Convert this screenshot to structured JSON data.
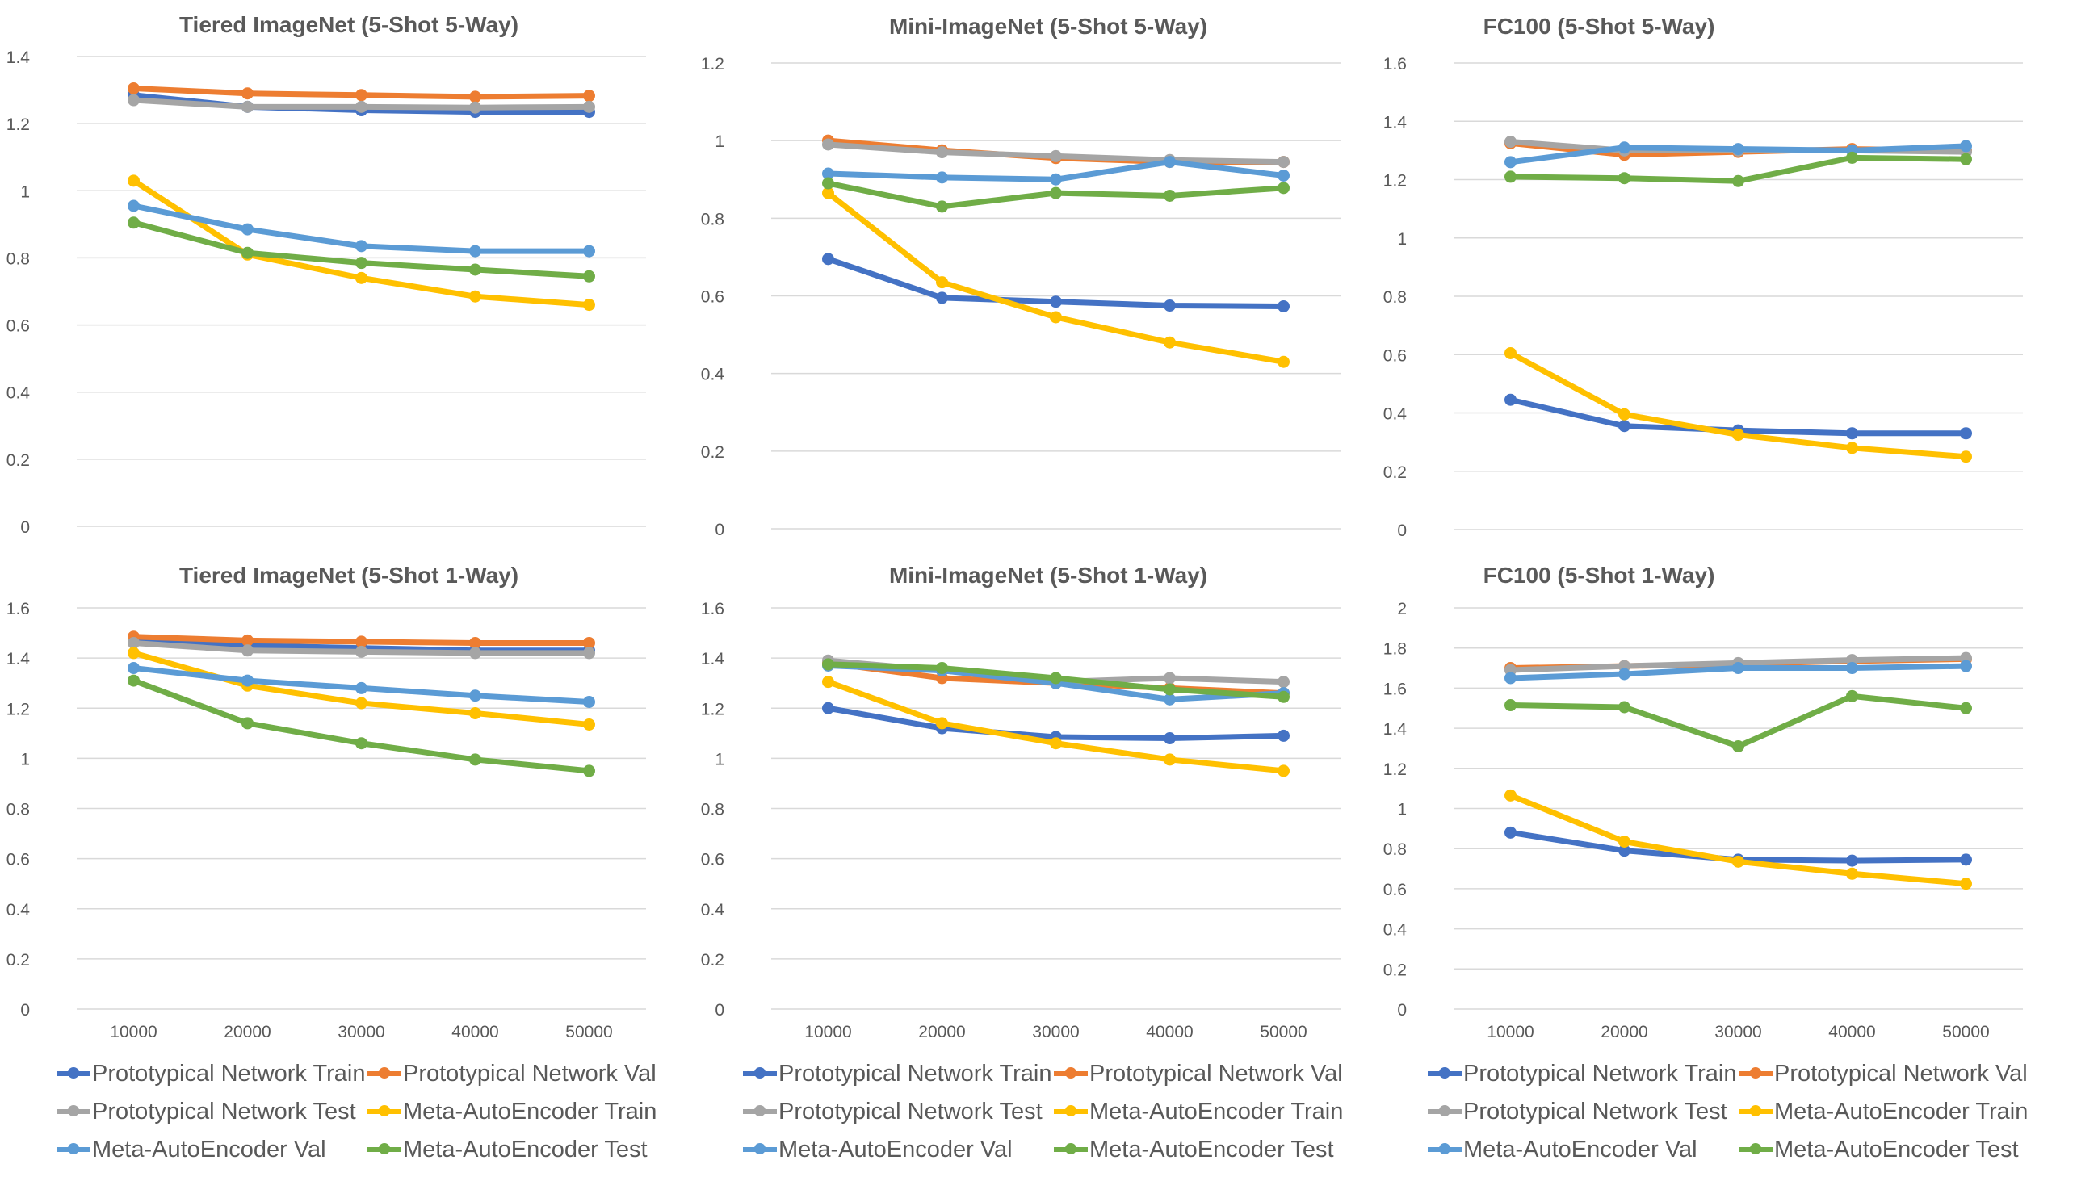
{
  "series_names": [
    "Prototypical Network Train",
    "Prototypical Network Val",
    "Prototypical Network Test",
    "Meta-AutoEncoder Train",
    "Meta-AutoEncoder Val",
    "Meta-AutoEncoder Test"
  ],
  "colors": {
    "Prototypical Network Train": "#4472C4",
    "Prototypical Network Val": "#ED7D31",
    "Prototypical Network Test": "#A5A5A5",
    "Meta-AutoEncoder Train": "#FFC000",
    "Meta-AutoEncoder Val": "#5B9BD5",
    "Meta-AutoEncoder Test": "#70AD47"
  },
  "chart_data": [
    {
      "type": "line",
      "title": "Tiered ImageNet (5-Shot 5-Way)",
      "x": [
        10000,
        20000,
        30000,
        40000,
        50000
      ],
      "xlabels": [
        "",
        "",
        "",
        "",
        ""
      ],
      "ylim": [
        0,
        1.4
      ],
      "yticks": [
        "0",
        "0.2",
        "0.4",
        "0.6",
        "0.8",
        "1",
        "1.2",
        "1.4"
      ],
      "series": [
        {
          "name": "Prototypical Network Train",
          "values": [
            1.285,
            1.25,
            1.24,
            1.235,
            1.235
          ]
        },
        {
          "name": "Prototypical Network Val",
          "values": [
            1.305,
            1.29,
            1.285,
            1.28,
            1.283
          ]
        },
        {
          "name": "Prototypical Network Test",
          "values": [
            1.27,
            1.25,
            1.25,
            1.248,
            1.25
          ]
        },
        {
          "name": "Meta-AutoEncoder Train",
          "values": [
            1.03,
            0.81,
            0.74,
            0.685,
            0.66
          ]
        },
        {
          "name": "Meta-AutoEncoder Val",
          "values": [
            0.955,
            0.885,
            0.835,
            0.82,
            0.82
          ]
        },
        {
          "name": "Meta-AutoEncoder Test",
          "values": [
            0.905,
            0.815,
            0.785,
            0.765,
            0.745
          ]
        }
      ]
    },
    {
      "type": "line",
      "title": "Mini-ImageNet (5-Shot 5-Way)",
      "x": [
        10000,
        20000,
        30000,
        40000,
        50000
      ],
      "xlabels": [
        "",
        "",
        "",
        "",
        ""
      ],
      "ylim": [
        0,
        1.2
      ],
      "yticks": [
        "0",
        "0.2",
        "0.4",
        "0.6",
        "0.8",
        "1",
        "1.2"
      ],
      "series": [
        {
          "name": "Prototypical Network Train",
          "values": [
            0.695,
            0.595,
            0.585,
            0.575,
            0.573
          ]
        },
        {
          "name": "Prototypical Network Val",
          "values": [
            1.0,
            0.975,
            0.955,
            0.945,
            0.945
          ]
        },
        {
          "name": "Prototypical Network Test",
          "values": [
            0.99,
            0.97,
            0.96,
            0.95,
            0.945
          ]
        },
        {
          "name": "Meta-AutoEncoder Train",
          "values": [
            0.865,
            0.635,
            0.545,
            0.48,
            0.43
          ]
        },
        {
          "name": "Meta-AutoEncoder Val",
          "values": [
            0.915,
            0.905,
            0.9,
            0.945,
            0.91
          ]
        },
        {
          "name": "Meta-AutoEncoder Test",
          "values": [
            0.89,
            0.83,
            0.865,
            0.858,
            0.878
          ]
        }
      ]
    },
    {
      "type": "line",
      "title": "FC100 (5-Shot 5-Way)",
      "x": [
        10000,
        20000,
        30000,
        40000,
        50000
      ],
      "xlabels": [
        "",
        "",
        "",
        "",
        ""
      ],
      "ylim": [
        0,
        1.6
      ],
      "yticks": [
        "0",
        "0.2",
        "0.4",
        "0.6",
        "0.8",
        "1",
        "1.2",
        "1.4",
        "1.6"
      ],
      "series": [
        {
          "name": "Prototypical Network Train",
          "values": [
            0.445,
            0.355,
            0.34,
            0.33,
            0.33
          ]
        },
        {
          "name": "Prototypical Network Val",
          "values": [
            1.325,
            1.285,
            1.295,
            1.305,
            1.3
          ]
        },
        {
          "name": "Prototypical Network Test",
          "values": [
            1.33,
            1.3,
            1.3,
            1.3,
            1.295
          ]
        },
        {
          "name": "Meta-AutoEncoder Train",
          "values": [
            0.605,
            0.395,
            0.325,
            0.28,
            0.25
          ]
        },
        {
          "name": "Meta-AutoEncoder Val",
          "values": [
            1.26,
            1.31,
            1.305,
            1.3,
            1.315
          ]
        },
        {
          "name": "Meta-AutoEncoder Test",
          "values": [
            1.21,
            1.205,
            1.195,
            1.275,
            1.27
          ]
        }
      ]
    },
    {
      "type": "line",
      "title": "Tiered ImageNet (5-Shot 1-Way)",
      "x": [
        10000,
        20000,
        30000,
        40000,
        50000
      ],
      "xlabels": [
        "10000",
        "20000",
        "30000",
        "40000",
        "50000"
      ],
      "ylim": [
        0,
        1.6
      ],
      "yticks": [
        "0",
        "0.2",
        "0.4",
        "0.6",
        "0.8",
        "1",
        "1.2",
        "1.4",
        "1.6"
      ],
      "series": [
        {
          "name": "Prototypical Network Train",
          "values": [
            1.47,
            1.45,
            1.44,
            1.43,
            1.43
          ]
        },
        {
          "name": "Prototypical Network Val",
          "values": [
            1.485,
            1.47,
            1.465,
            1.46,
            1.46
          ]
        },
        {
          "name": "Prototypical Network Test",
          "values": [
            1.46,
            1.43,
            1.425,
            1.42,
            1.42
          ]
        },
        {
          "name": "Meta-AutoEncoder Train",
          "values": [
            1.42,
            1.29,
            1.22,
            1.18,
            1.135
          ]
        },
        {
          "name": "Meta-AutoEncoder Val",
          "values": [
            1.36,
            1.31,
            1.28,
            1.25,
            1.225
          ]
        },
        {
          "name": "Meta-AutoEncoder Test",
          "values": [
            1.31,
            1.14,
            1.06,
            0.995,
            0.95
          ]
        }
      ]
    },
    {
      "type": "line",
      "title": "Mini-ImageNet (5-Shot 1-Way)",
      "x": [
        10000,
        20000,
        30000,
        40000,
        50000
      ],
      "xlabels": [
        "10000",
        "20000",
        "30000",
        "40000",
        "50000"
      ],
      "ylim": [
        0,
        1.6
      ],
      "yticks": [
        "0",
        "0.2",
        "0.4",
        "0.6",
        "0.8",
        "1",
        "1.2",
        "1.4",
        "1.6"
      ],
      "series": [
        {
          "name": "Prototypical Network Train",
          "values": [
            1.2,
            1.12,
            1.085,
            1.08,
            1.09
          ]
        },
        {
          "name": "Prototypical Network Val",
          "values": [
            1.38,
            1.32,
            1.3,
            1.28,
            1.26
          ]
        },
        {
          "name": "Prototypical Network Test",
          "values": [
            1.39,
            1.35,
            1.305,
            1.32,
            1.305
          ]
        },
        {
          "name": "Meta-AutoEncoder Train",
          "values": [
            1.305,
            1.14,
            1.06,
            0.995,
            0.95
          ]
        },
        {
          "name": "Meta-AutoEncoder Val",
          "values": [
            1.37,
            1.35,
            1.3,
            1.235,
            1.26
          ]
        },
        {
          "name": "Meta-AutoEncoder Test",
          "values": [
            1.375,
            1.36,
            1.32,
            1.275,
            1.245
          ]
        }
      ]
    },
    {
      "type": "line",
      "title": "FC100 (5-Shot 1-Way)",
      "x": [
        10000,
        20000,
        30000,
        40000,
        50000
      ],
      "xlabels": [
        "10000",
        "20000",
        "30000",
        "40000",
        "50000"
      ],
      "ylim": [
        0,
        2
      ],
      "yticks": [
        "0",
        "0.2",
        "0.4",
        "0.6",
        "0.8",
        "1",
        "1.2",
        "1.4",
        "1.6",
        "1.8",
        "2"
      ],
      "series": [
        {
          "name": "Prototypical Network Train",
          "values": [
            0.88,
            0.79,
            0.745,
            0.74,
            0.745
          ]
        },
        {
          "name": "Prototypical Network Val",
          "values": [
            1.7,
            1.71,
            1.72,
            1.735,
            1.745
          ]
        },
        {
          "name": "Prototypical Network Test",
          "values": [
            1.69,
            1.71,
            1.725,
            1.74,
            1.75
          ]
        },
        {
          "name": "Meta-AutoEncoder Train",
          "values": [
            1.065,
            0.835,
            0.735,
            0.675,
            0.625
          ]
        },
        {
          "name": "Meta-AutoEncoder Val",
          "values": [
            1.65,
            1.67,
            1.7,
            1.7,
            1.71
          ]
        },
        {
          "name": "Meta-AutoEncoder Test",
          "values": [
            1.515,
            1.505,
            1.31,
            1.56,
            1.5
          ]
        }
      ]
    }
  ]
}
